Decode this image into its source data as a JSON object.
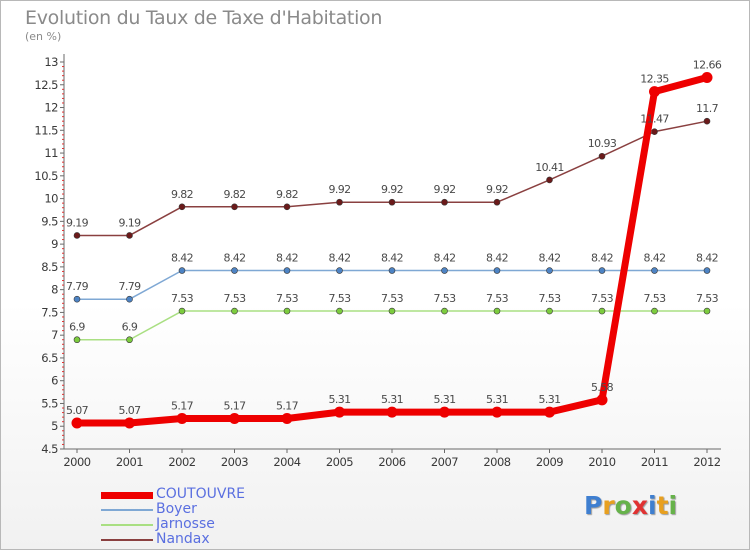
{
  "title": "Evolution du Taux de Taxe d'Habitation",
  "subtitle": "(en %)",
  "brand": {
    "letters": [
      "P",
      "r",
      "o",
      "x",
      "i",
      "t",
      "i"
    ],
    "colors": [
      "#3f7fd0",
      "#e8a020",
      "#66b24a",
      "#e03232",
      "#3f7fd0",
      "#e8a020",
      "#66b24a"
    ]
  },
  "chart_data": {
    "type": "line",
    "title": "Evolution du Taux de Taxe d'Habitation",
    "ylabel": "(en %)",
    "xlabel": "",
    "categories": [
      "2000",
      "2001",
      "2002",
      "2003",
      "2004",
      "2005",
      "2006",
      "2007",
      "2008",
      "2009",
      "2010",
      "2011",
      "2012"
    ],
    "ylim": [
      4.5,
      13
    ],
    "yticks": [
      "4.5",
      "5",
      "5.5",
      "6",
      "6.5",
      "7",
      "7.5",
      "8",
      "8.5",
      "9",
      "9.5",
      "10",
      "10.5",
      "11",
      "11.5",
      "12",
      "12.5",
      "13"
    ],
    "grid": false,
    "legend_position": "bottom-left",
    "series": [
      {
        "name": "COUTOUVRE",
        "color": "#ee0000",
        "markerColor": "#ee0000",
        "emphasis": true,
        "values": [
          5.07,
          5.07,
          5.17,
          5.17,
          5.17,
          5.31,
          5.31,
          5.31,
          5.31,
          5.31,
          5.58,
          12.35,
          12.66
        ],
        "labels": [
          "5.07",
          "5.07",
          "5.17",
          "5.17",
          "5.17",
          "5.31",
          "5.31",
          "5.31",
          "5.31",
          "5.31",
          "5.58",
          "12.35",
          "12.66"
        ]
      },
      {
        "name": "Boyer",
        "color": "#7fa8d4",
        "markerColor": "#4d83c4",
        "values": [
          7.79,
          7.79,
          8.42,
          8.42,
          8.42,
          8.42,
          8.42,
          8.42,
          8.42,
          8.42,
          8.42,
          8.42,
          8.42
        ],
        "labels": [
          "7.79",
          "7.79",
          "8.42",
          "8.42",
          "8.42",
          "8.42",
          "8.42",
          "8.42",
          "8.42",
          "8.42",
          "8.42",
          "8.42",
          "8.42"
        ]
      },
      {
        "name": "Jarnosse",
        "color": "#a9df82",
        "markerColor": "#7ccc3e",
        "values": [
          6.9,
          6.9,
          7.53,
          7.53,
          7.53,
          7.53,
          7.53,
          7.53,
          7.53,
          7.53,
          7.53,
          7.53,
          7.53
        ],
        "labels": [
          "6.9",
          "6.9",
          "7.53",
          "7.53",
          "7.53",
          "7.53",
          "7.53",
          "7.53",
          "7.53",
          "7.53",
          "7.53",
          "7.53",
          "7.53"
        ]
      },
      {
        "name": "Nandax",
        "color": "#8a4040",
        "markerColor": "#6b1a1a",
        "values": [
          9.19,
          9.19,
          9.82,
          9.82,
          9.82,
          9.92,
          9.92,
          9.92,
          9.92,
          10.41,
          10.93,
          11.47,
          11.7
        ],
        "labels": [
          "9.19",
          "9.19",
          "9.82",
          "9.82",
          "9.82",
          "9.92",
          "9.92",
          "9.92",
          "9.92",
          "10.41",
          "10.93",
          "11.47",
          "11.7"
        ]
      }
    ]
  }
}
